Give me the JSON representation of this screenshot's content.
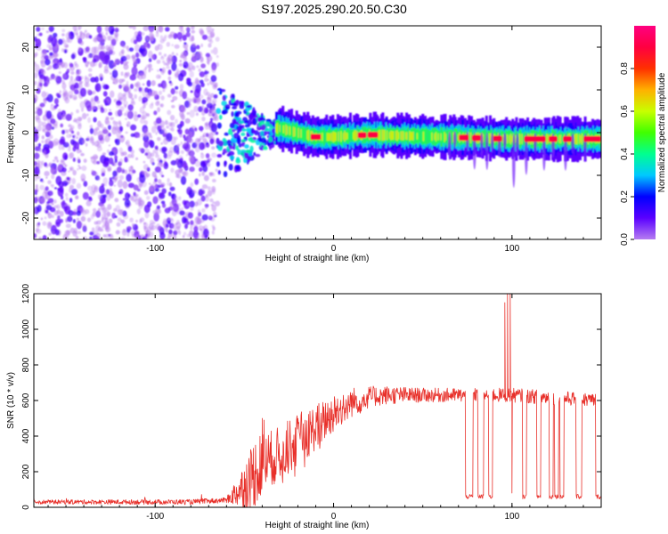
{
  "page_title": "S197.2025.290.20.50.C30",
  "chart_data": [
    {
      "type": "heatmap",
      "title": "S197.2025.290.20.50.C30",
      "xlabel": "Height of straight line (km)",
      "ylabel": "Frequency (Hz)",
      "xlim": [
        -168,
        150
      ],
      "ylim": [
        -25,
        25
      ],
      "xticks": [
        -100,
        0,
        100
      ],
      "xtick_labels": [
        "-100",
        "0",
        "100"
      ],
      "yticks": [
        -20,
        -10,
        0,
        10,
        20
      ],
      "ytick_labels": [
        "-20",
        "-10",
        "0",
        "10",
        "20"
      ],
      "colorbar": {
        "label": "Normalized spectral amplitude",
        "range": [
          0,
          1
        ],
        "ticks": [
          0.0,
          0.2,
          0.4,
          0.6,
          0.8
        ],
        "tick_labels": [
          "0.0",
          "0.2",
          "0.4",
          "0.6",
          "0.8"
        ],
        "colormap": [
          "#b57cf0",
          "#5a00ff",
          "#0000ff",
          "#00c8ff",
          "#00ff90",
          "#40ff00",
          "#c8ff00",
          "#ffb000",
          "#ff3000",
          "#ff0040",
          "#ff0080"
        ]
      },
      "features": {
        "noise_region_x": [
          -168,
          -65
        ],
        "transition_region_x": [
          -65,
          -30
        ],
        "signal_band_center_hz": [
          [
            -30,
            1
          ],
          [
            -20,
            0
          ],
          [
            -10,
            -1
          ],
          [
            0,
            -1
          ],
          [
            20,
            -0.5
          ],
          [
            60,
            -1
          ],
          [
            100,
            -1.5
          ],
          [
            148,
            -1.5
          ]
        ],
        "band_half_width_hz": 1.2
      }
    },
    {
      "type": "line",
      "xlabel": "Height of straight line (km)",
      "ylabel": "SNR (10 * v/v)",
      "xlim": [
        -168,
        150
      ],
      "ylim": [
        0,
        1200
      ],
      "xticks": [
        -100,
        0,
        100
      ],
      "xtick_labels": [
        "-100",
        "0",
        "100"
      ],
      "yticks": [
        0,
        200,
        400,
        600,
        800,
        1000,
        1200
      ],
      "ytick_labels": [
        "0",
        "200",
        "400",
        "600",
        "800",
        "1000",
        "1200"
      ],
      "series": [
        {
          "name": "SNR",
          "color": "#e8302a",
          "envelope": [
            [
              -168,
              30
            ],
            [
              -80,
              30
            ],
            [
              -60,
              40
            ],
            [
              -50,
              120
            ],
            [
              -40,
              250
            ],
            [
              -30,
              300
            ],
            [
              -20,
              380
            ],
            [
              -10,
              450
            ],
            [
              0,
              530
            ],
            [
              10,
              590
            ],
            [
              20,
              620
            ],
            [
              30,
              630
            ],
            [
              60,
              630
            ],
            [
              100,
              630
            ],
            [
              150,
              600
            ]
          ],
          "noise_amplitude": [
            [
              -168,
              12
            ],
            [
              -60,
              15
            ],
            [
              -45,
              200
            ],
            [
              -35,
              160
            ],
            [
              -20,
              150
            ],
            [
              0,
              110
            ],
            [
              20,
              60
            ],
            [
              50,
              40
            ],
            [
              150,
              40
            ]
          ],
          "dropouts": [
            [
              74,
              78
            ],
            [
              81,
              84
            ],
            [
              87,
              89
            ],
            [
              106,
              108
            ],
            [
              114,
              116
            ],
            [
              121,
              123
            ],
            [
              124,
              126
            ],
            [
              127,
              129
            ],
            [
              136,
              139
            ],
            [
              147,
              150
            ]
          ],
          "dropout_value": 60,
          "spikes": [
            [
              -40,
              500
            ],
            [
              -39,
              490
            ],
            [
              96,
              1150
            ],
            [
              97.5,
              1200
            ],
            [
              99,
              1200
            ],
            [
              100,
              80
            ]
          ]
        }
      ]
    }
  ]
}
